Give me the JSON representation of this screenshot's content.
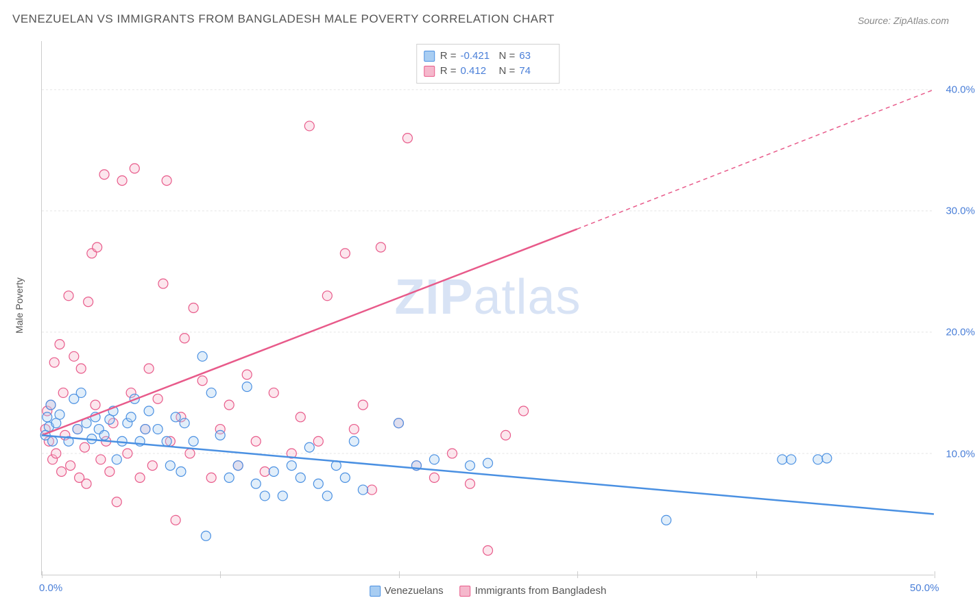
{
  "title": "VENEZUELAN VS IMMIGRANTS FROM BANGLADESH MALE POVERTY CORRELATION CHART",
  "source": "Source: ZipAtlas.com",
  "y_axis_label": "Male Poverty",
  "watermark_zip": "ZIP",
  "watermark_atlas": "atlas",
  "chart": {
    "type": "scatter",
    "xlim": [
      0,
      50
    ],
    "ylim": [
      0,
      44
    ],
    "x_ticks": [
      0,
      10,
      20,
      30,
      40,
      50
    ],
    "x_tick_labels": [
      "0.0%",
      "",
      "",
      "",
      "",
      "50.0%"
    ],
    "y_gridlines": [
      10,
      20,
      30,
      40
    ],
    "y_tick_labels": [
      "10.0%",
      "20.0%",
      "30.0%",
      "40.0%"
    ],
    "background_color": "#ffffff",
    "grid_color": "#e5e5e5",
    "axis_color": "#cccccc",
    "tick_label_color": "#4a7fd8",
    "text_color": "#555555",
    "marker_radius": 7,
    "marker_stroke_width": 1.2,
    "marker_fill_opacity": 0.35,
    "trend_line_width": 2.5,
    "series": [
      {
        "name": "Venezuelans",
        "color": "#4a90e2",
        "fill": "#a8cdf2",
        "R": "-0.421",
        "N": "63",
        "trend": {
          "x1": 0,
          "y1": 11.5,
          "x2": 50,
          "y2": 5.0,
          "dash": null
        },
        "points": [
          [
            0.2,
            11.5
          ],
          [
            0.3,
            13.0
          ],
          [
            0.4,
            12.2
          ],
          [
            0.5,
            14.0
          ],
          [
            0.6,
            11.0
          ],
          [
            0.8,
            12.5
          ],
          [
            1.0,
            13.2
          ],
          [
            1.5,
            11.0
          ],
          [
            1.8,
            14.5
          ],
          [
            2.0,
            12.0
          ],
          [
            2.2,
            15.0
          ],
          [
            2.5,
            12.5
          ],
          [
            2.8,
            11.2
          ],
          [
            3.0,
            13.0
          ],
          [
            3.2,
            12.0
          ],
          [
            3.5,
            11.5
          ],
          [
            3.8,
            12.8
          ],
          [
            4.0,
            13.5
          ],
          [
            4.2,
            9.5
          ],
          [
            4.5,
            11.0
          ],
          [
            4.8,
            12.5
          ],
          [
            5.0,
            13.0
          ],
          [
            5.2,
            14.5
          ],
          [
            5.5,
            11.0
          ],
          [
            5.8,
            12.0
          ],
          [
            6.0,
            13.5
          ],
          [
            6.5,
            12.0
          ],
          [
            7.0,
            11.0
          ],
          [
            7.2,
            9.0
          ],
          [
            7.5,
            13.0
          ],
          [
            7.8,
            8.5
          ],
          [
            8.0,
            12.5
          ],
          [
            8.5,
            11.0
          ],
          [
            9.0,
            18.0
          ],
          [
            9.2,
            3.2
          ],
          [
            9.5,
            15.0
          ],
          [
            10.0,
            11.5
          ],
          [
            10.5,
            8.0
          ],
          [
            11.0,
            9.0
          ],
          [
            11.5,
            15.5
          ],
          [
            12.0,
            7.5
          ],
          [
            12.5,
            6.5
          ],
          [
            13.0,
            8.5
          ],
          [
            13.5,
            6.5
          ],
          [
            14.0,
            9.0
          ],
          [
            14.5,
            8.0
          ],
          [
            15.0,
            10.5
          ],
          [
            15.5,
            7.5
          ],
          [
            16.0,
            6.5
          ],
          [
            16.5,
            9.0
          ],
          [
            17.0,
            8.0
          ],
          [
            17.5,
            11.0
          ],
          [
            18.0,
            7.0
          ],
          [
            20.0,
            12.5
          ],
          [
            21.0,
            9.0
          ],
          [
            22.0,
            9.5
          ],
          [
            24.0,
            9.0
          ],
          [
            25.0,
            9.2
          ],
          [
            35.0,
            4.5
          ],
          [
            41.5,
            9.5
          ],
          [
            42.0,
            9.5
          ],
          [
            43.5,
            9.5
          ],
          [
            44.0,
            9.6
          ]
        ]
      },
      {
        "name": "Immigrants from Bangladesh",
        "color": "#e85a8a",
        "fill": "#f5b8cc",
        "R": "0.412",
        "N": "74",
        "trend": {
          "x1": 0,
          "y1": 11.5,
          "x2": 30,
          "y2": 28.5,
          "dash_from_x": 30,
          "x3": 50,
          "y3": 40.0
        },
        "points": [
          [
            0.2,
            12.0
          ],
          [
            0.3,
            13.5
          ],
          [
            0.4,
            11.0
          ],
          [
            0.5,
            14.0
          ],
          [
            0.6,
            9.5
          ],
          [
            0.7,
            17.5
          ],
          [
            0.8,
            10.0
          ],
          [
            1.0,
            19.0
          ],
          [
            1.1,
            8.5
          ],
          [
            1.2,
            15.0
          ],
          [
            1.3,
            11.5
          ],
          [
            1.5,
            23.0
          ],
          [
            1.6,
            9.0
          ],
          [
            1.8,
            18.0
          ],
          [
            2.0,
            12.0
          ],
          [
            2.1,
            8.0
          ],
          [
            2.2,
            17.0
          ],
          [
            2.4,
            10.5
          ],
          [
            2.5,
            7.5
          ],
          [
            2.6,
            22.5
          ],
          [
            2.8,
            26.5
          ],
          [
            3.0,
            14.0
          ],
          [
            3.1,
            27.0
          ],
          [
            3.3,
            9.5
          ],
          [
            3.5,
            33.0
          ],
          [
            3.6,
            11.0
          ],
          [
            3.8,
            8.5
          ],
          [
            4.0,
            12.5
          ],
          [
            4.2,
            6.0
          ],
          [
            4.5,
            32.5
          ],
          [
            4.8,
            10.0
          ],
          [
            5.0,
            15.0
          ],
          [
            5.2,
            33.5
          ],
          [
            5.5,
            8.0
          ],
          [
            5.8,
            12.0
          ],
          [
            6.0,
            17.0
          ],
          [
            6.2,
            9.0
          ],
          [
            6.5,
            14.5
          ],
          [
            6.8,
            24.0
          ],
          [
            7.0,
            32.5
          ],
          [
            7.2,
            11.0
          ],
          [
            7.5,
            4.5
          ],
          [
            7.8,
            13.0
          ],
          [
            8.0,
            19.5
          ],
          [
            8.3,
            10.0
          ],
          [
            8.5,
            22.0
          ],
          [
            9.0,
            16.0
          ],
          [
            9.5,
            8.0
          ],
          [
            10.0,
            12.0
          ],
          [
            10.5,
            14.0
          ],
          [
            11.0,
            9.0
          ],
          [
            11.5,
            16.5
          ],
          [
            12.0,
            11.0
          ],
          [
            12.5,
            8.5
          ],
          [
            13.0,
            15.0
          ],
          [
            14.0,
            10.0
          ],
          [
            14.5,
            13.0
          ],
          [
            15.0,
            37.0
          ],
          [
            15.5,
            11.0
          ],
          [
            16.0,
            23.0
          ],
          [
            17.0,
            26.5
          ],
          [
            17.5,
            12.0
          ],
          [
            18.0,
            14.0
          ],
          [
            18.5,
            7.0
          ],
          [
            19.0,
            27.0
          ],
          [
            20.0,
            12.5
          ],
          [
            20.5,
            36.0
          ],
          [
            21.0,
            9.0
          ],
          [
            22.0,
            8.0
          ],
          [
            23.0,
            10.0
          ],
          [
            24.0,
            7.5
          ],
          [
            25.0,
            2.0
          ],
          [
            26.0,
            11.5
          ],
          [
            27.0,
            13.5
          ]
        ]
      }
    ]
  },
  "legend": {
    "R_label": "R =",
    "N_label": "N ="
  }
}
